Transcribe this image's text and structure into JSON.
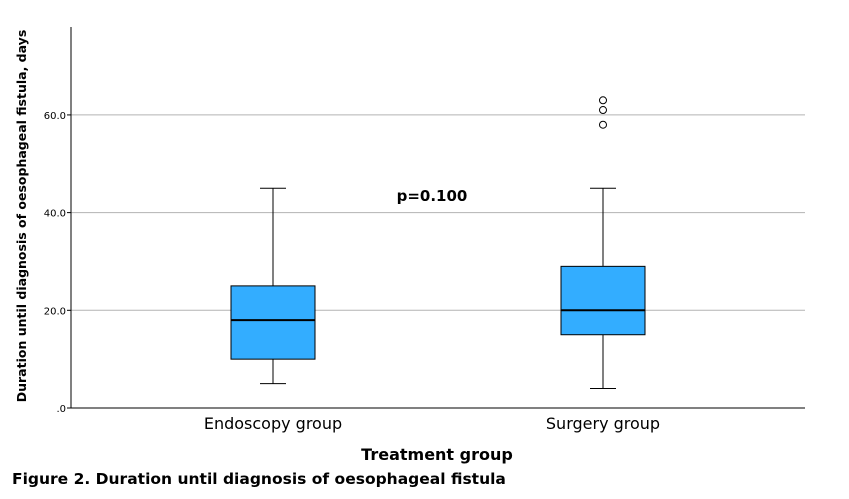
{
  "chart_data": {
    "type": "boxplot",
    "xlabel": "Treatment group",
    "ylabel": "Duration until diagnosis of oesophageal fistula, days",
    "ylim": [
      0,
      78
    ],
    "yticks": [
      0,
      20,
      40,
      60
    ],
    "ytick_labels": [
      ".0",
      "20.0",
      "40.0",
      "60.0"
    ],
    "grid": true,
    "box_color": "#33adff",
    "categories": [
      "Endoscopy group",
      "Surgery group"
    ],
    "groups": [
      {
        "category": "Endoscopy group",
        "whisker_low": 5,
        "q1": 10,
        "median": 18,
        "q3": 25,
        "whisker_high": 45,
        "outliers": []
      },
      {
        "category": "Surgery group",
        "whisker_low": 4,
        "q1": 15,
        "median": 20,
        "q3": 29,
        "whisker_high": 45,
        "outliers": [
          58,
          61,
          63
        ]
      }
    ],
    "annotations": [
      {
        "text": "p=0.100"
      }
    ]
  },
  "caption": "Figure 2. Duration until diagnosis of oesophageal fistula"
}
